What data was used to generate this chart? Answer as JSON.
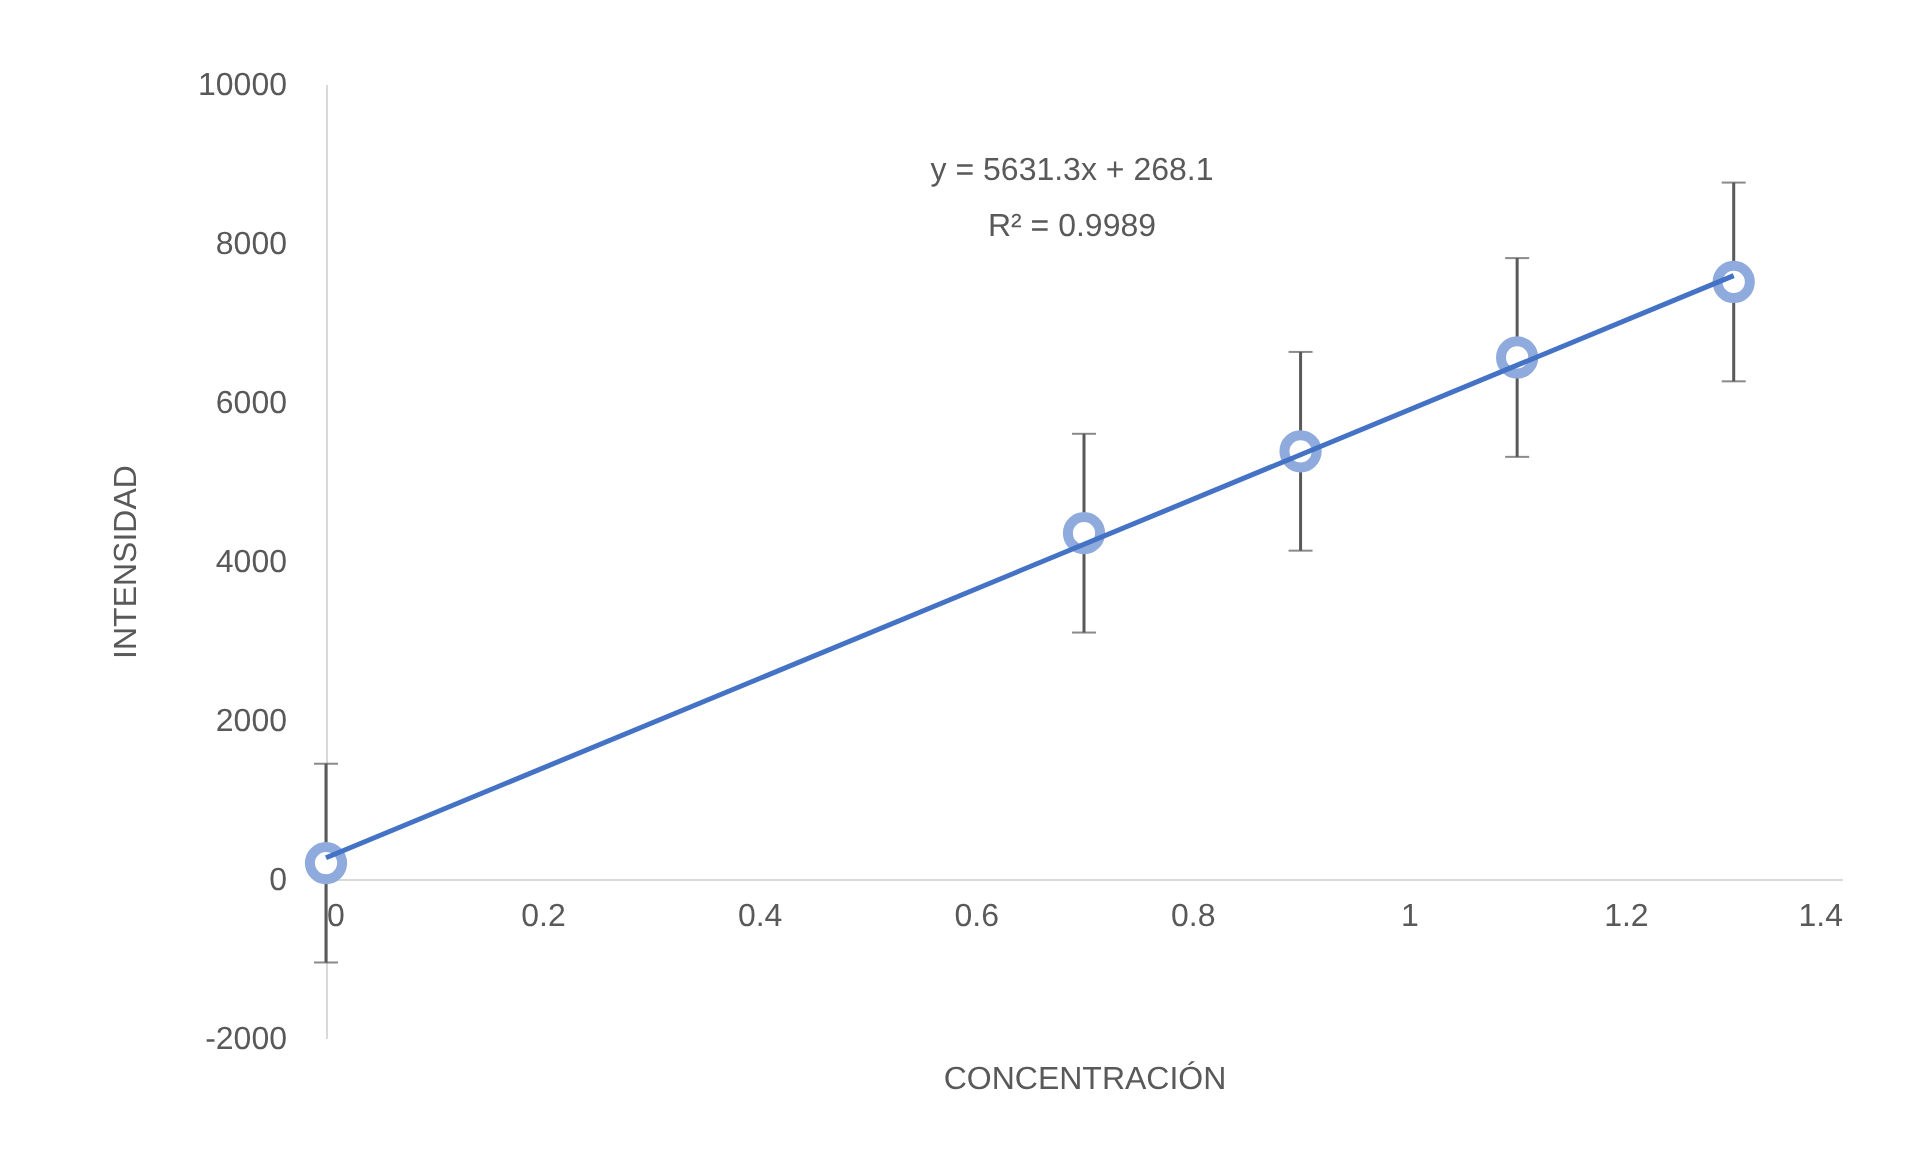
{
  "chart_data": {
    "type": "scatter",
    "xlabel": "CONCENTRACIÓN",
    "ylabel": "INTENSIDAD",
    "annotations": [
      "y = 5631.3x + 268.1",
      "R² = 0.9989"
    ],
    "xlim": [
      0,
      1.4
    ],
    "xticks": [
      0,
      0.2,
      0.4,
      0.6,
      0.8,
      1,
      1.2,
      1.4
    ],
    "ylim": [
      -2000,
      10000
    ],
    "yticks": [
      -2000,
      0,
      2000,
      4000,
      6000,
      8000,
      10000
    ],
    "grid": false,
    "series": [
      {
        "marker": "circle",
        "color": "#8faadc",
        "x": [
          0,
          0.7,
          0.9,
          1.1,
          1.3
        ],
        "values": [
          200,
          4350,
          5380,
          6560,
          7510
        ],
        "errors": [
          1250,
          1250,
          1250,
          1250,
          1250
        ]
      },
      {
        "type": "line",
        "color": "#4472c4",
        "x": [
          0,
          1.3
        ],
        "values": [
          268,
          7589
        ]
      }
    ]
  }
}
